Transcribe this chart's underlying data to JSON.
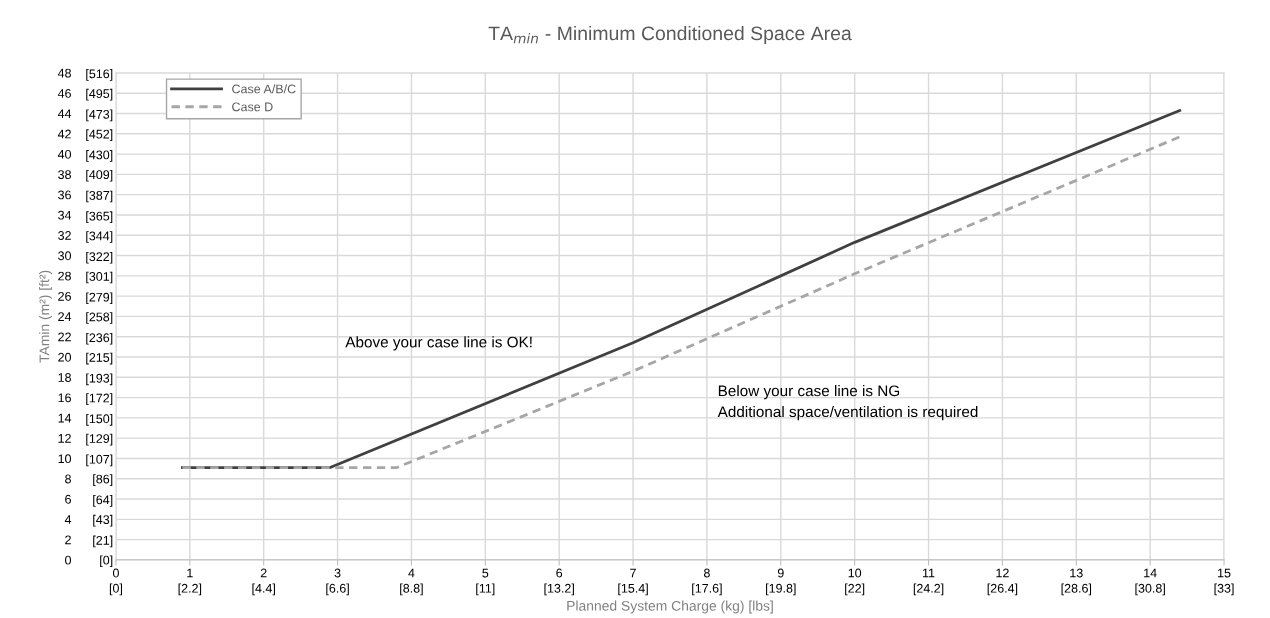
{
  "chart_data": {
    "type": "line",
    "title": "TA$_{min}$ - Minimum Conditioned Space Area",
    "xlabel": "Planned System Charge (kg) [lbs]",
    "ylabel": "TAmin (m²) [ft²)",
    "annotations": [
      "Above your case line is OK!",
      "Below your case line is NG\nAdditional space/ventilation is required"
    ],
    "series": [
      {
        "name": "Case A/B/C",
        "color": "#404040",
        "line_style": "solid",
        "x": [
          0.9,
          2.9,
          7,
          10,
          14.4
        ],
        "values": [
          9.1,
          9.1,
          21.4,
          31.3,
          44.3
        ]
      },
      {
        "name": "Case D",
        "color": "#a6a6a6",
        "line_style": "dashed",
        "x": [
          0.9,
          3.8,
          7,
          10,
          14.4
        ],
        "values": [
          9.1,
          9.1,
          18.6,
          28.2,
          41.7
        ]
      }
    ],
    "xlim": [
      0,
      15
    ],
    "ylim": [
      0,
      48
    ],
    "xticks": [
      0,
      1,
      2,
      3,
      4,
      5,
      6,
      7,
      8,
      9,
      10,
      11,
      12,
      13,
      14,
      15
    ],
    "x2lim": [
      0,
      33
    ],
    "x2ticks": [
      {
        "value": 0,
        "label": "[0]"
      },
      {
        "value": 2.2,
        "label": "[2.2]"
      },
      {
        "value": 4.4,
        "label": "[4.4]"
      },
      {
        "value": 6.6,
        "label": "[6.6]"
      },
      {
        "value": 8.8,
        "label": "[8.8]"
      },
      {
        "value": 11,
        "label": "[11]"
      },
      {
        "value": 13.2,
        "label": "[13.2]"
      },
      {
        "value": 15.4,
        "label": "[15.4]"
      },
      {
        "value": 17.6,
        "label": "[17.6]"
      },
      {
        "value": 19.8,
        "label": "[19.8]"
      },
      {
        "value": 22,
        "label": "[22]"
      },
      {
        "value": 24.2,
        "label": "[24.2]"
      },
      {
        "value": 26.4,
        "label": "[26.4]"
      },
      {
        "value": 28.6,
        "label": "[28.6]"
      },
      {
        "value": 30.8,
        "label": "[30.8]"
      },
      {
        "value": 33,
        "label": "[33]"
      }
    ],
    "yticks": [
      0,
      2,
      4,
      6,
      8,
      10,
      12,
      14,
      16,
      18,
      20,
      22,
      24,
      26,
      28,
      30,
      32,
      34,
      36,
      38,
      40,
      42,
      44,
      46,
      48
    ],
    "y2lim": [
      0,
      516.7
    ],
    "y2ticks": [
      {
        "value": 0,
        "label": "[0]"
      },
      {
        "value": 21,
        "label": "[21]"
      },
      {
        "value": 43,
        "label": "[43]"
      },
      {
        "value": 64,
        "label": "[64]"
      },
      {
        "value": 86,
        "label": "[86]"
      },
      {
        "value": 107,
        "label": "[107]"
      },
      {
        "value": 129,
        "label": "[129]"
      },
      {
        "value": 150,
        "label": "[150]"
      },
      {
        "value": 172,
        "label": "[172]"
      },
      {
        "value": 193,
        "label": "[193]"
      },
      {
        "value": 215,
        "label": "[215]"
      },
      {
        "value": 236,
        "label": "[236]"
      },
      {
        "value": 258,
        "label": "[258]"
      },
      {
        "value": 279,
        "label": "[279]"
      },
      {
        "value": 301,
        "label": "[301]"
      },
      {
        "value": 322,
        "label": "[322]"
      },
      {
        "value": 344,
        "label": "[344]"
      },
      {
        "value": 365,
        "label": "[365]"
      },
      {
        "value": 387,
        "label": "[387]"
      },
      {
        "value": 409,
        "label": "[409]"
      },
      {
        "value": 430,
        "label": "[430]"
      },
      {
        "value": 452,
        "label": "[452]"
      },
      {
        "value": 473,
        "label": "[473]"
      },
      {
        "value": 495,
        "label": "[495]"
      },
      {
        "value": 516,
        "label": "[516]"
      }
    ],
    "grid": true,
    "legend": "top left",
    "marker": "none"
  }
}
